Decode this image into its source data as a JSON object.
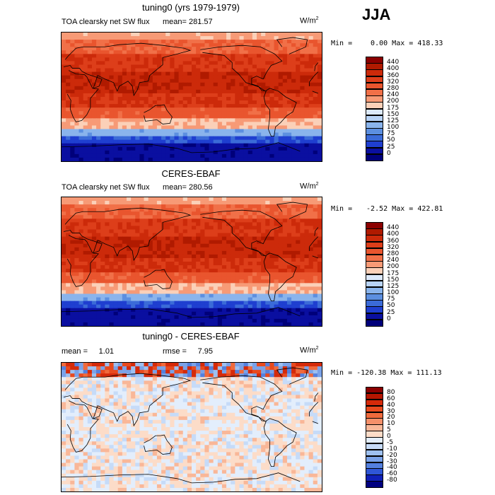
{
  "season": "JJA",
  "panels": [
    {
      "title": "tuning0 (yrs 1979-1979)",
      "variable": "TOA clearsky net SW flux",
      "mean_label": "mean=",
      "mean_value": "281.57",
      "units": "W/m",
      "units_sup": "2",
      "min_label": "Min =",
      "min_value": "0.00",
      "max_label": "Max =",
      "max_value": "418.33",
      "colorbar_levels": [
        "440",
        "400",
        "360",
        "320",
        "280",
        "240",
        "200",
        "175",
        "150",
        "125",
        "100",
        "75",
        "50",
        "25",
        "0"
      ],
      "colorbar_colors": [
        "#8b0000",
        "#b01a00",
        "#cc2a0a",
        "#dd3e1a",
        "#e9552e",
        "#f17048",
        "#f79a76",
        "#fbd0b8",
        "#dce9fb",
        "#b8d3f6",
        "#8ab4ec",
        "#5c8fe0",
        "#3b6bd8",
        "#1f3fd0",
        "#0a0fa0",
        "#00007a"
      ]
    },
    {
      "title": "CERES-EBAF",
      "variable": "TOA clearsky net SW flux",
      "mean_label": "mean=",
      "mean_value": "280.56",
      "units": "W/m",
      "units_sup": "2",
      "min_label": "Min =",
      "min_value": "-2.52",
      "max_label": "Max =",
      "max_value": "422.81",
      "colorbar_levels": [
        "440",
        "400",
        "360",
        "320",
        "280",
        "240",
        "200",
        "175",
        "150",
        "125",
        "100",
        "75",
        "50",
        "25",
        "0"
      ],
      "colorbar_colors": [
        "#8b0000",
        "#b01a00",
        "#cc2a0a",
        "#dd3e1a",
        "#e9552e",
        "#f17048",
        "#f79a76",
        "#fbd0b8",
        "#dce9fb",
        "#b8d3f6",
        "#8ab4ec",
        "#5c8fe0",
        "#3b6bd8",
        "#1f3fd0",
        "#0a0fa0",
        "#00007a"
      ]
    },
    {
      "title": "tuning0 - CERES-EBAF",
      "mean_label": "mean =",
      "mean_value": "1.01",
      "rmse_label": "rmse =",
      "rmse_value": "7.95",
      "units": "W/m",
      "units_sup": "2",
      "min_label": "Min =",
      "min_value": "-120.38",
      "max_label": "Max =",
      "max_value": "111.13",
      "colorbar_levels": [
        "80",
        "60",
        "40",
        "30",
        "20",
        "10",
        "5",
        "0",
        "-5",
        "-10",
        "-20",
        "-30",
        "-40",
        "-60",
        "-80"
      ],
      "colorbar_colors": [
        "#8b0000",
        "#b51500",
        "#d52a0a",
        "#e84a1e",
        "#f06a3c",
        "#f5906a",
        "#f9b798",
        "#fcdcc8",
        "#e3eefc",
        "#c6dbf8",
        "#9ec0f0",
        "#7aa2e8",
        "#5480de",
        "#2f56d6",
        "#1020b8",
        "#000080"
      ]
    }
  ]
}
